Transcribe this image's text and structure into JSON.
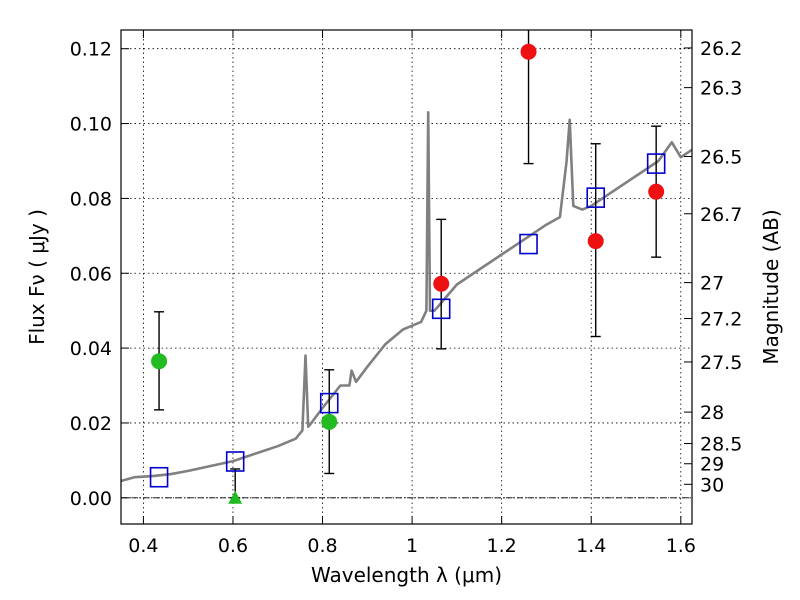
{
  "chart_data": {
    "type": "scatter",
    "xlabel": "Wavelength  λ (μm)",
    "ylabel": "Flux  Fν  ( μJy )",
    "y2label": "Magnitude (AB)",
    "xlim": [
      0.35,
      1.625
    ],
    "ylim": [
      -0.007,
      0.125
    ],
    "grid": true,
    "x_ticks": [
      0.4,
      0.6,
      0.8,
      1.0,
      1.2,
      1.4,
      1.6
    ],
    "x_tick_labels": [
      "0.4",
      "0.6",
      "0.8",
      "1",
      "1.2",
      "1.4",
      "1.6"
    ],
    "y_ticks": [
      0.0,
      0.02,
      0.04,
      0.06,
      0.08,
      0.1,
      0.12
    ],
    "y_tick_labels": [
      "0.00",
      "0.02",
      "0.04",
      "0.06",
      "0.08",
      "0.10",
      "0.12"
    ],
    "y2_ticks": [
      {
        "label": "26.2",
        "flux": 0.1202
      },
      {
        "label": "26.3",
        "flux": 0.1096
      },
      {
        "label": "26.5",
        "flux": 0.0912
      },
      {
        "label": "26.7",
        "flux": 0.0759
      },
      {
        "label": "27",
        "flux": 0.0575
      },
      {
        "label": "27.2",
        "flux": 0.0479
      },
      {
        "label": "27.5",
        "flux": 0.0363
      },
      {
        "label": "28",
        "flux": 0.0229
      },
      {
        "label": "28.5",
        "flux": 0.0145
      },
      {
        "label": "29",
        "flux": 0.0091
      },
      {
        "label": "30",
        "flux": 0.0036
      }
    ],
    "zero_line": true,
    "colors": {
      "model": "#808080",
      "green": "#22bb22",
      "red": "#ee1111",
      "box": "#0000cc",
      "errorbar": "#000000"
    },
    "model_spectrum": {
      "x": [
        0.35,
        0.38,
        0.42,
        0.46,
        0.5,
        0.55,
        0.6,
        0.65,
        0.7,
        0.74,
        0.755,
        0.762,
        0.768,
        0.775,
        0.8,
        0.84,
        0.86,
        0.865,
        0.875,
        0.9,
        0.94,
        0.98,
        1.0,
        1.02,
        1.032,
        1.036,
        1.04,
        1.05,
        1.1,
        1.15,
        1.2,
        1.25,
        1.3,
        1.33,
        1.345,
        1.352,
        1.36,
        1.38,
        1.4,
        1.45,
        1.5,
        1.55,
        1.58,
        1.6,
        1.625
      ],
      "y": [
        0.0045,
        0.0055,
        0.0058,
        0.0063,
        0.0072,
        0.0085,
        0.0098,
        0.0118,
        0.0138,
        0.0158,
        0.018,
        0.038,
        0.019,
        0.02,
        0.024,
        0.03,
        0.03,
        0.034,
        0.031,
        0.035,
        0.041,
        0.045,
        0.046,
        0.047,
        0.05,
        0.103,
        0.05,
        0.05,
        0.057,
        0.061,
        0.065,
        0.069,
        0.073,
        0.075,
        0.09,
        0.101,
        0.078,
        0.077,
        0.078,
        0.082,
        0.086,
        0.09,
        0.095,
        0.091,
        0.093
      ]
    },
    "series": [
      {
        "marker": "circle",
        "color": "green",
        "points": [
          {
            "x": 0.435,
            "y": 0.0365,
            "err_low": 0.0235,
            "err_high": 0.0497
          },
          {
            "x": 0.815,
            "y": 0.0203,
            "err_low": 0.0065,
            "err_high": 0.0342
          }
        ]
      },
      {
        "marker": "triangle",
        "color": "green",
        "points": [
          {
            "x": 0.605,
            "y": 0.0,
            "err_low": 0.0,
            "err_high": 0.0077
          }
        ]
      },
      {
        "marker": "circle",
        "color": "red",
        "points": [
          {
            "x": 1.065,
            "y": 0.0572,
            "err_low": 0.0398,
            "err_high": 0.0744
          },
          {
            "x": 1.26,
            "y": 0.1192,
            "err_low": 0.0893,
            "err_high": 0.1267
          },
          {
            "x": 1.41,
            "y": 0.0686,
            "err_low": 0.0431,
            "err_high": 0.0946
          },
          {
            "x": 1.545,
            "y": 0.0818,
            "err_low": 0.0643,
            "err_high": 0.0993
          }
        ]
      },
      {
        "marker": "square",
        "color": "box",
        "points": [
          {
            "x": 0.435,
            "y": 0.0055
          },
          {
            "x": 0.605,
            "y": 0.0097
          },
          {
            "x": 0.815,
            "y": 0.0253
          },
          {
            "x": 1.065,
            "y": 0.0505
          },
          {
            "x": 1.26,
            "y": 0.0678
          },
          {
            "x": 1.41,
            "y": 0.0802
          },
          {
            "x": 1.545,
            "y": 0.0893
          }
        ]
      }
    ]
  }
}
